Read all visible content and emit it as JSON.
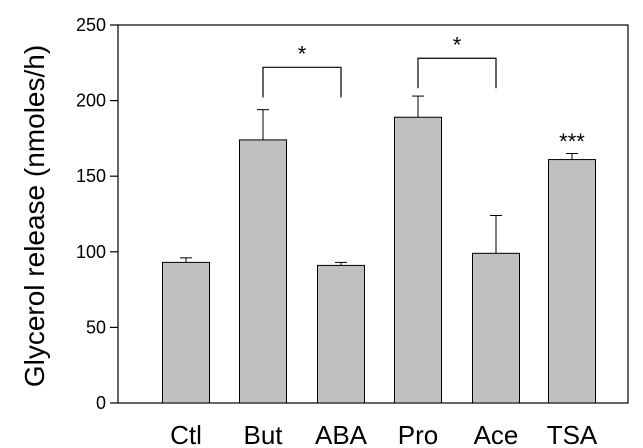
{
  "chart_data": {
    "type": "bar",
    "title": "",
    "ylabel": "Glycerol release (nmoles/h)",
    "xlabel": "",
    "ylim": [
      0,
      250
    ],
    "yticks": [
      0,
      50,
      100,
      150,
      200,
      250
    ],
    "grid": false,
    "legend": "none",
    "bar_color": "#c0c0c0",
    "categories": [
      "Ctl",
      "But",
      "ABA",
      "Pro",
      "Ace",
      "TSA"
    ],
    "values": [
      93,
      174,
      91,
      189,
      99,
      161
    ],
    "errors": [
      3,
      20,
      2,
      14,
      25,
      4
    ],
    "annotations": [
      {
        "type": "bracket",
        "from": 1,
        "to": 2,
        "height": 222,
        "label": "*"
      },
      {
        "type": "bracket",
        "from": 3,
        "to": 4,
        "height": 228,
        "label": "*"
      },
      {
        "type": "marker",
        "at": 5,
        "y": 172,
        "label": "***"
      }
    ]
  }
}
